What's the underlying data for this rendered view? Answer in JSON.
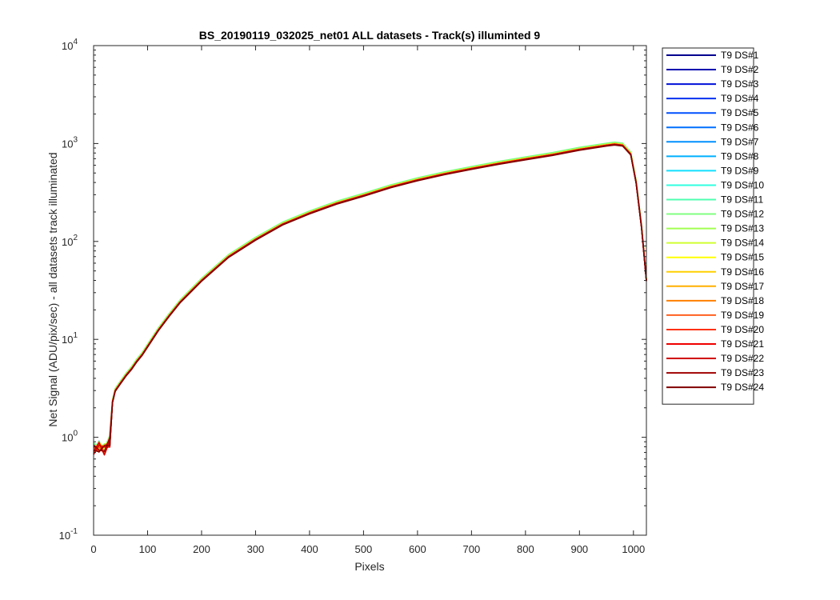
{
  "chart_data": {
    "type": "line",
    "title": "BS_20190119_032025_net01 ALL datasets - Track(s) illuminted 9",
    "xlabel": "Pixels",
    "ylabel": "Net Signal (ADU/pix/sec) - all datasets track illuminated",
    "xlim": [
      0,
      1024
    ],
    "ylim": [
      0.1,
      10000
    ],
    "yscale": "log",
    "grid": false,
    "legend_position": "outside-right",
    "x_ticks": [
      "0",
      "100",
      "200",
      "300",
      "400",
      "500",
      "600",
      "700",
      "800",
      "900",
      "1000"
    ],
    "y_ticks": [
      {
        "base": "10",
        "exp": "-1",
        "value": 0.1
      },
      {
        "base": "10",
        "exp": "0",
        "value": 1
      },
      {
        "base": "10",
        "exp": "1",
        "value": 10
      },
      {
        "base": "10",
        "exp": "2",
        "value": 100
      },
      {
        "base": "10",
        "exp": "3",
        "value": 1000
      },
      {
        "base": "10",
        "exp": "4",
        "value": 10000
      }
    ],
    "x": [
      0,
      10,
      20,
      30,
      35,
      40,
      50,
      60,
      70,
      80,
      90,
      100,
      120,
      140,
      160,
      180,
      200,
      250,
      300,
      350,
      400,
      450,
      500,
      550,
      600,
      650,
      700,
      750,
      800,
      850,
      900,
      950,
      965,
      980,
      995,
      1005,
      1015,
      1024
    ],
    "base_curve": [
      0.75,
      0.8,
      0.75,
      0.9,
      2.3,
      3.0,
      3.6,
      4.3,
      5.0,
      6.0,
      7.0,
      8.5,
      12.5,
      17.5,
      24,
      31,
      40,
      70,
      105,
      150,
      195,
      245,
      295,
      360,
      425,
      490,
      555,
      625,
      695,
      770,
      870,
      960,
      985,
      960,
      780,
      400,
      140,
      40
    ],
    "series": [
      {
        "name": "T9 DS#1",
        "color": "#00008f",
        "scale": 1.0
      },
      {
        "name": "T9 DS#2",
        "color": "#0000b0",
        "scale": 1.0
      },
      {
        "name": "T9 DS#3",
        "color": "#0010d8",
        "scale": 1.0
      },
      {
        "name": "T9 DS#4",
        "color": "#0030f0",
        "scale": 1.01
      },
      {
        "name": "T9 DS#5",
        "color": "#0050ff",
        "scale": 1.01
      },
      {
        "name": "T9 DS#6",
        "color": "#0070ff",
        "scale": 1.01
      },
      {
        "name": "T9 DS#7",
        "color": "#0090ff",
        "scale": 1.02
      },
      {
        "name": "T9 DS#8",
        "color": "#00b0ff",
        "scale": 1.02
      },
      {
        "name": "T9 DS#9",
        "color": "#10e0ff",
        "scale": 1.02
      },
      {
        "name": "T9 DS#10",
        "color": "#30ffe0",
        "scale": 1.03
      },
      {
        "name": "T9 DS#11",
        "color": "#50ffb0",
        "scale": 1.03
      },
      {
        "name": "T9 DS#12",
        "color": "#80ff80",
        "scale": 1.05
      },
      {
        "name": "T9 DS#13",
        "color": "#a0ff50",
        "scale": 1.02
      },
      {
        "name": "T9 DS#14",
        "color": "#d0ff30",
        "scale": 1.02
      },
      {
        "name": "T9 DS#15",
        "color": "#ffff00",
        "scale": 1.01
      },
      {
        "name": "T9 DS#16",
        "color": "#ffd000",
        "scale": 1.01
      },
      {
        "name": "T9 DS#17",
        "color": "#ffb000",
        "scale": 1.01
      },
      {
        "name": "T9 DS#18",
        "color": "#ff8000",
        "scale": 1.0
      },
      {
        "name": "T9 DS#19",
        "color": "#ff6020",
        "scale": 1.0
      },
      {
        "name": "T9 DS#20",
        "color": "#ff3010",
        "scale": 1.0
      },
      {
        "name": "T9 DS#21",
        "color": "#f00000",
        "scale": 1.0
      },
      {
        "name": "T9 DS#22",
        "color": "#d00000",
        "scale": 0.99
      },
      {
        "name": "T9 DS#23",
        "color": "#a00000",
        "scale": 0.99
      },
      {
        "name": "T9 DS#24",
        "color": "#800000",
        "scale": 0.98
      }
    ]
  }
}
